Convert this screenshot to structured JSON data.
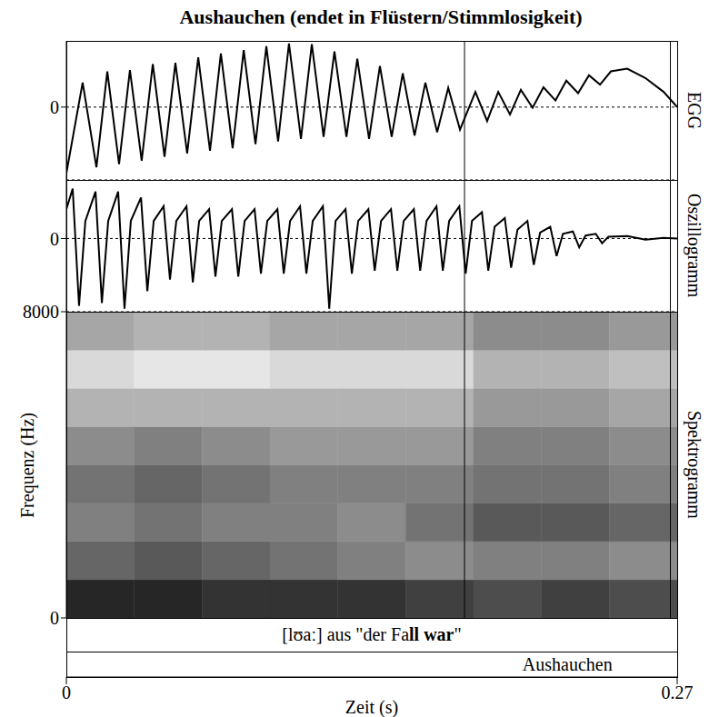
{
  "title": "Aushauchen (endet in Flüstern/Stimmlosigkeit)",
  "xlabel": "Zeit (s)",
  "xlim": [
    0,
    0.27
  ],
  "xticks": [
    0,
    0.27
  ],
  "chart_data": [
    {
      "type": "line",
      "title": "EGG",
      "ylim": [
        -1.1,
        1.0
      ],
      "yticks": [
        0
      ],
      "grid": true,
      "color": "#000000",
      "x": [
        0,
        0.0072,
        0.0133,
        0.0181,
        0.0233,
        0.0281,
        0.0333,
        0.0382,
        0.0434,
        0.0482,
        0.0534,
        0.0583,
        0.0635,
        0.0683,
        0.0735,
        0.0784,
        0.0836,
        0.0884,
        0.0936,
        0.0984,
        0.1037,
        0.1085,
        0.1137,
        0.1185,
        0.1238,
        0.1286,
        0.1338,
        0.1386,
        0.1438,
        0.1487,
        0.1539,
        0.1587,
        0.1639,
        0.1688,
        0.174,
        0.1808,
        0.186,
        0.1909,
        0.1961,
        0.2009,
        0.2061,
        0.2109,
        0.2162,
        0.221,
        0.2262,
        0.231,
        0.2359,
        0.2407,
        0.2479,
        0.2559,
        0.264,
        0.27
      ],
      "values": [
        -1.0,
        0.37,
        -0.91,
        0.54,
        -0.86,
        0.56,
        -0.81,
        0.65,
        -0.75,
        0.67,
        -0.7,
        0.75,
        -0.66,
        0.81,
        -0.62,
        0.86,
        -0.56,
        0.92,
        -0.52,
        0.96,
        -0.48,
        0.95,
        -0.45,
        0.84,
        -0.45,
        0.73,
        -0.48,
        0.62,
        -0.45,
        0.51,
        -0.43,
        0.37,
        -0.38,
        0.29,
        -0.34,
        0.23,
        -0.21,
        0.23,
        -0.11,
        0.26,
        -0.01,
        0.3,
        0.1,
        0.4,
        0.21,
        0.48,
        0.34,
        0.54,
        0.58,
        0.44,
        0.23,
        0
      ]
    },
    {
      "type": "line",
      "title": "Oszillogramm",
      "ylim": [
        -1.25,
        1.0
      ],
      "yticks": [
        0
      ],
      "grid": true,
      "color": "#000000",
      "x": [
        0,
        0.0028,
        0.0056,
        0.0084,
        0.0129,
        0.0157,
        0.0185,
        0.0229,
        0.0257,
        0.0285,
        0.033,
        0.0358,
        0.0386,
        0.043,
        0.0458,
        0.0486,
        0.0531,
        0.0559,
        0.0587,
        0.0631,
        0.0659,
        0.0687,
        0.0732,
        0.076,
        0.0788,
        0.0832,
        0.086,
        0.0888,
        0.0933,
        0.0961,
        0.0989,
        0.1033,
        0.1061,
        0.1089,
        0.1134,
        0.1162,
        0.119,
        0.1234,
        0.1262,
        0.129,
        0.1335,
        0.1363,
        0.1391,
        0.1435,
        0.1463,
        0.1491,
        0.1536,
        0.1564,
        0.1592,
        0.1636,
        0.1664,
        0.1692,
        0.1737,
        0.1765,
        0.1793,
        0.1837,
        0.1865,
        0.1893,
        0.1938,
        0.1966,
        0.1994,
        0.2038,
        0.2066,
        0.2094,
        0.2139,
        0.2167,
        0.2195,
        0.2239,
        0.2267,
        0.2295,
        0.234,
        0.2368,
        0.2396,
        0.248,
        0.256,
        0.264,
        0.27
      ],
      "values": [
        0.5,
        0.85,
        -1.15,
        0.3,
        0.8,
        -1.1,
        0.3,
        0.8,
        -1.2,
        0.3,
        0.7,
        -0.9,
        0.3,
        0.55,
        -0.7,
        0.3,
        0.55,
        -0.75,
        0.3,
        0.5,
        -0.65,
        0.3,
        0.5,
        -0.65,
        0.3,
        0.5,
        -0.6,
        0.3,
        0.5,
        -0.6,
        0.3,
        0.55,
        -0.6,
        0.3,
        0.55,
        -1.2,
        0.3,
        0.5,
        -0.6,
        0.3,
        0.5,
        -0.55,
        0.3,
        0.5,
        -0.55,
        0.3,
        0.5,
        -0.55,
        0.3,
        0.55,
        -0.55,
        0.3,
        0.55,
        -0.6,
        0.3,
        0.45,
        -0.55,
        0.2,
        0.35,
        -0.5,
        0.15,
        0.3,
        -0.45,
        0.1,
        0.2,
        -0.3,
        0.08,
        0.12,
        -0.15,
        0.05,
        0.08,
        -0.08,
        0.03,
        0.04,
        -0.02,
        0.01,
        0
      ]
    },
    {
      "type": "heatmap",
      "title": "Spektrogramm",
      "ylabel": "Frequenz (Hz)",
      "ylim": [
        0,
        8000
      ],
      "yticks": [
        0,
        8000
      ],
      "grid": false,
      "x_edges": [
        0,
        0.03,
        0.06,
        0.09,
        0.12,
        0.15,
        0.18,
        0.21,
        0.24,
        0.27
      ],
      "y_edges": [
        0,
        1000,
        2000,
        3000,
        4000,
        5000,
        6000,
        7000,
        8000
      ],
      "cells": [
        [
          0.85,
          0.85,
          0.8,
          0.8,
          0.8,
          0.75,
          0.7,
          0.75,
          0.7
        ],
        [
          0.6,
          0.65,
          0.6,
          0.55,
          0.5,
          0.45,
          0.5,
          0.5,
          0.45
        ],
        [
          0.5,
          0.55,
          0.5,
          0.5,
          0.45,
          0.55,
          0.65,
          0.65,
          0.6
        ],
        [
          0.55,
          0.6,
          0.55,
          0.5,
          0.5,
          0.5,
          0.55,
          0.55,
          0.5
        ],
        [
          0.45,
          0.5,
          0.45,
          0.4,
          0.4,
          0.4,
          0.5,
          0.5,
          0.45
        ],
        [
          0.3,
          0.3,
          0.3,
          0.3,
          0.3,
          0.3,
          0.4,
          0.4,
          0.35
        ],
        [
          0.15,
          0.1,
          0.1,
          0.15,
          0.15,
          0.15,
          0.3,
          0.3,
          0.25
        ],
        [
          0.35,
          0.3,
          0.3,
          0.35,
          0.35,
          0.35,
          0.45,
          0.45,
          0.4
        ]
      ]
    }
  ],
  "tiers": [
    {
      "label_parts": [
        {
          "text": "[lʊaː] aus \"der Fa",
          "bold": false
        },
        {
          "text": "ll war",
          "bold": true
        },
        {
          "text": "\"",
          "bold": false
        }
      ],
      "start": 0,
      "end": 0.27
    },
    {
      "label_parts": [
        {
          "text": "Aushauchen",
          "bold": false
        }
      ],
      "start": 0.176,
      "end": 0.267
    }
  ]
}
